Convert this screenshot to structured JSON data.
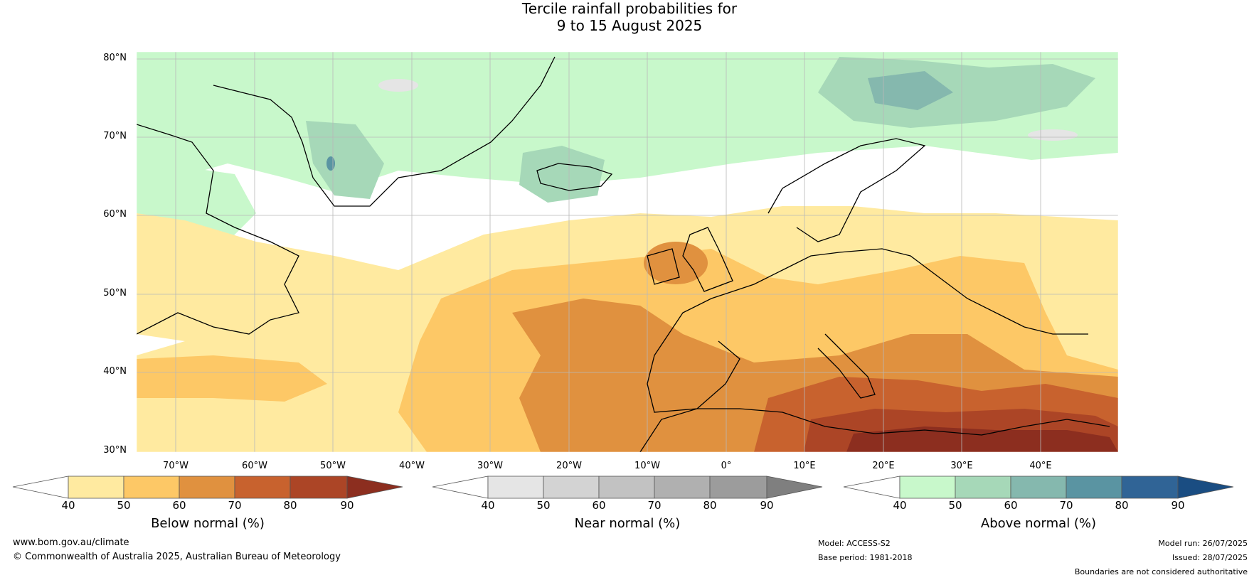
{
  "title": {
    "line1": "Tercile rainfall probabilities for",
    "line2": "9 to 15 August 2025"
  },
  "lat_labels": [
    "80°N",
    "70°N",
    "60°N",
    "50°N",
    "40°N",
    "30°N"
  ],
  "lon_labels": [
    "70°W",
    "60°W",
    "50°W",
    "40°W",
    "30°W",
    "20°W",
    "10°W",
    "0°",
    "10°E",
    "20°E",
    "30°E",
    "40°E"
  ],
  "colorbars": [
    {
      "name": "Below normal (%)",
      "ticks": [
        "40",
        "50",
        "60",
        "70",
        "80",
        "90"
      ],
      "colors": [
        "#ffeaa0",
        "#fdc866",
        "#e0913f",
        "#c8622e",
        "#ac4526",
        "#8c2e1f"
      ]
    },
    {
      "name": "Near normal (%)",
      "ticks": [
        "40",
        "50",
        "60",
        "70",
        "80",
        "90"
      ],
      "colors": [
        "#e5e5e5",
        "#d3d3d3",
        "#c2c2c2",
        "#b0b0b0",
        "#9c9c9c",
        "#7f7f7f"
      ]
    },
    {
      "name": "Above normal (%)",
      "ticks": [
        "40",
        "50",
        "60",
        "70",
        "80",
        "90"
      ],
      "colors": [
        "#c8f8cb",
        "#a6d8b8",
        "#85b8ae",
        "#5a94a2",
        "#306496",
        "#1a4d82"
      ]
    }
  ],
  "footer": {
    "website": "www.bom.gov.au/climate",
    "copyright": "© Commonwealth of Australia 2025, Australian Bureau of Meteorology",
    "model": "Model: ACCESS-S2",
    "base_period": "Base period: 1981-2018",
    "model_run": "Model run: 26/07/2025",
    "issued": "Issued: 28/07/2025",
    "disclaimer": "Boundaries are not considered authoritative"
  }
}
